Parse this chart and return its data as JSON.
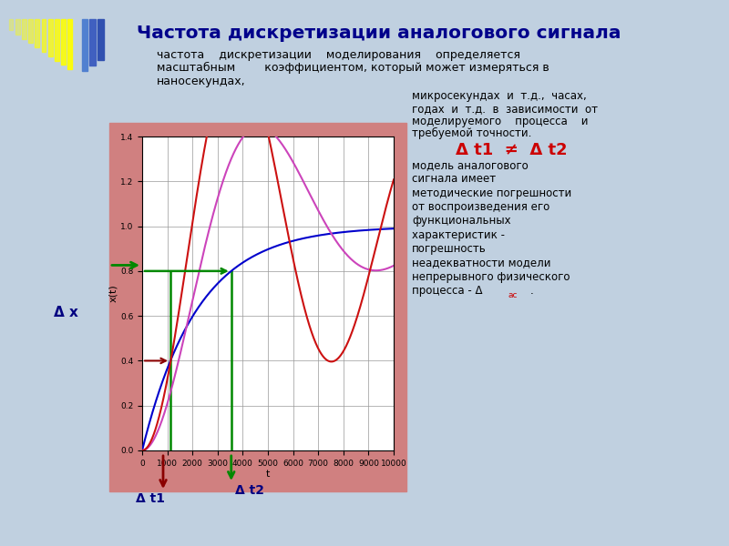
{
  "title": "Частота дискретизации аналогового сигнала",
  "subtitle_line1": "частота    дискретизации    моделирования    определяется",
  "subtitle_line2": "масштабным        коэффициентом, который может измеряться в",
  "subtitle_line3": "наносекундах,",
  "right_text_line1": "микросекундах  и  т.д.,  часах,",
  "right_text_line2": "годах  и  т.д.  в  зависимости  от",
  "right_text_line3": "моделируемого    процесса    и",
  "right_text_line4": "требуемой точности.",
  "delta_formula": "Δ t1  ≠  Δ t2",
  "body_text_lines": [
    "модель аналогового",
    "сигнала имеет",
    "методические погрешности",
    "от воспроизведения его",
    "функциональных",
    "характеристик -",
    "погрешность",
    "неадекватности модели",
    "непрерывного физического"
  ],
  "bg_color": "#c0d0e0",
  "plot_bg_color": "#d08080",
  "plot_face_color": "#ffffff",
  "title_color": "#00008B",
  "subtitle_color": "#000000",
  "right_text_color": "#000000",
  "delta_formula_color": "#cc0000",
  "body_text_color": "#000000",
  "delta_ac_color": "#cc0000",
  "xlabel": "t",
  "ylabel": "x(t)",
  "t_max": 10000,
  "yticks": [
    0,
    0.2,
    0.4,
    0.6,
    0.8,
    1.0,
    1.2,
    1.4
  ],
  "xticks": [
    0,
    1000,
    2000,
    3000,
    4000,
    5000,
    6000,
    7000,
    8000,
    9000,
    10000
  ],
  "label_delta_x": "Δ x",
  "label_delta_t1": "Δ t1",
  "label_delta_t2": "Δ t2"
}
